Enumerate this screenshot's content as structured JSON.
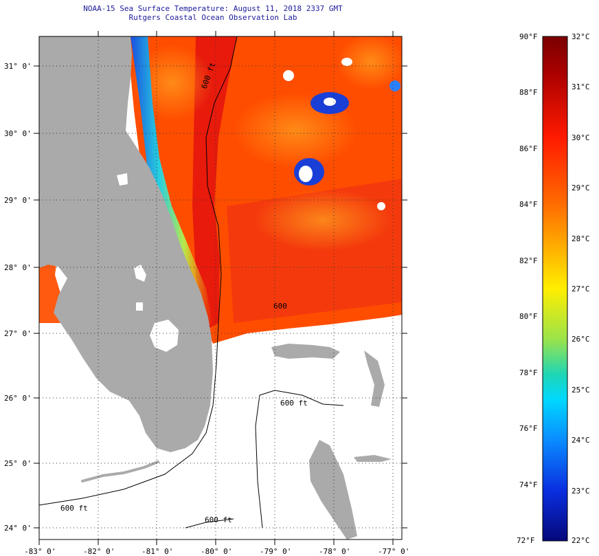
{
  "header": {
    "title": "NOAA-15 Sea Surface Temperature:  August 11, 2018 2337 GMT",
    "subtitle": "Rutgers Coastal Ocean Observation Lab"
  },
  "map": {
    "lon_ticks": [
      "-83° 0'",
      "-82° 0'",
      "-81° 0'",
      "-80° 0'",
      "-79° 0'",
      "-78° 0'",
      "-77° 0'"
    ],
    "lat_ticks": [
      "31° 0'",
      "30° 0'",
      "29° 0'",
      "28° 0'",
      "27° 0'",
      "26° 0'",
      "25° 0'",
      "24° 0'"
    ],
    "isobath_labels": [
      "600 ft",
      "600",
      "600 ft",
      "600 ft",
      "600 ft"
    ],
    "colors": {
      "land": "#aaaaaa",
      "cloud": "#ffffff",
      "warm_water": "#ff4a00",
      "hot_water": "#e8160c",
      "cool_water": "#1a3fd6"
    }
  },
  "colorbar": {
    "fahrenheit": [
      "90°F",
      "88°F",
      "86°F",
      "84°F",
      "82°F",
      "80°F",
      "78°F",
      "76°F",
      "74°F",
      "72°F"
    ],
    "celsius": [
      "32°C",
      "31°C",
      "30°C",
      "29°C",
      "28°C",
      "27°C",
      "26°C",
      "25°C",
      "24°C",
      "23°C",
      "22°C"
    ],
    "range_f": [
      72,
      90
    ],
    "range_c": [
      22,
      32
    ]
  }
}
